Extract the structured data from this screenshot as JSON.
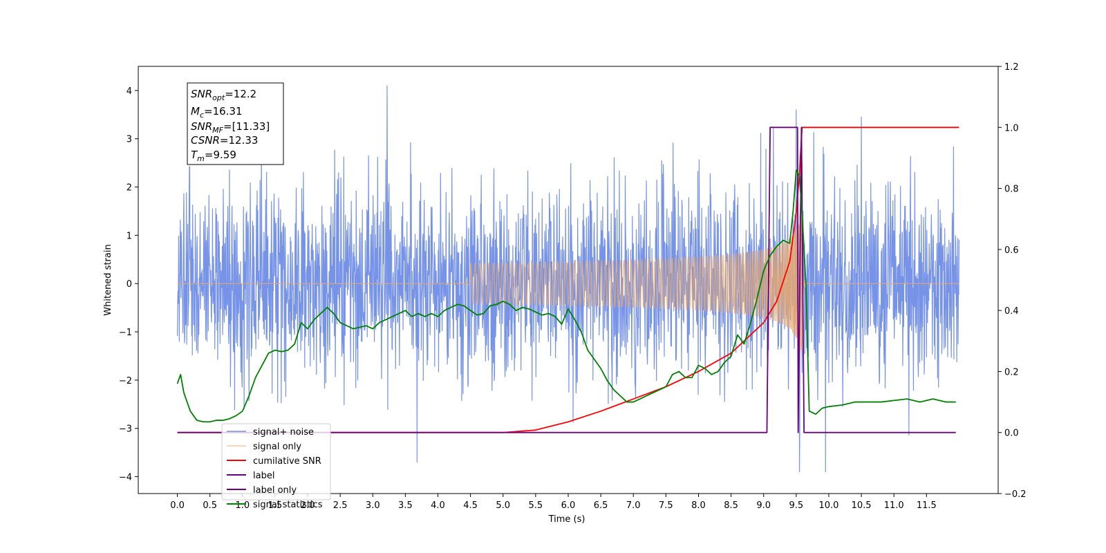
{
  "chart_data": {
    "type": "line",
    "xlabel": "Time (s)",
    "ylabel": "Whitened strain",
    "xlim": [
      -0.6,
      12.6
    ],
    "ylim": [
      -4.35,
      4.5
    ],
    "y2lim": [
      -0.2,
      1.2
    ],
    "x_ticks": [
      "0.0",
      "0.5",
      "1.0",
      "1.5",
      "2.0",
      "2.5",
      "3.0",
      "3.5",
      "4.0",
      "4.5",
      "5.0",
      "5.5",
      "6.0",
      "6.5",
      "7.0",
      "7.5",
      "8.0",
      "8.5",
      "9.0",
      "9.5",
      "10.0",
      "10.5",
      "11.0",
      "11.5"
    ],
    "y_ticks": [
      "4",
      "3",
      "2",
      "1",
      "0",
      "−1",
      "−2",
      "−3",
      "−4"
    ],
    "y2_ticks": [
      "1.2",
      "1.0",
      "0.8",
      "0.6",
      "0.4",
      "0.2",
      "0.0",
      "−0.2"
    ],
    "grid": false,
    "legend_position": "lower-left",
    "annotation": {
      "snr_opt": {
        "base": "SNR",
        "sub": "opt",
        "value": "=12.2"
      },
      "mc": {
        "base": "M",
        "sub": "c",
        "value": "=16.31"
      },
      "snr_mf": {
        "base": "SNR",
        "sub": "MF",
        "value": "=[11.33]"
      },
      "csnr": {
        "base": "CSNR",
        "value": "=12.33"
      },
      "tm": {
        "base": "T",
        "sub": "m",
        "value": "=9.59"
      }
    },
    "series": [
      {
        "name": "signal+ noise",
        "color": "#7693e8",
        "axis": "left",
        "kind": "noise",
        "x_range": [
          0.0,
          12.0
        ],
        "envelope_std": 1.0,
        "peak_values": [
          [
            3.22,
            4.1
          ],
          [
            3.68,
            -3.7
          ],
          [
            9.5,
            3.6
          ],
          [
            9.55,
            -3.9
          ],
          [
            9.95,
            -3.9
          ],
          [
            10.5,
            3.45
          ]
        ]
      },
      {
        "name": "signal only",
        "color": "#e8a86e",
        "axis": "left",
        "kind": "chirp",
        "x_range": [
          0.0,
          12.0
        ],
        "merger_time": 9.59,
        "peak_amplitude": 2.5
      },
      {
        "name": "cumilative SNR",
        "color": "#ff0000",
        "axis": "right",
        "x": [
          0.0,
          5.0,
          5.5,
          6.0,
          6.5,
          7.0,
          7.5,
          8.0,
          8.5,
          9.0,
          9.2,
          9.4,
          9.5,
          9.55,
          9.59,
          12.0
        ],
        "values": [
          0.0,
          0.0,
          0.008,
          0.035,
          0.07,
          0.11,
          0.15,
          0.2,
          0.26,
          0.36,
          0.43,
          0.56,
          0.72,
          0.85,
          1.0,
          1.0
        ]
      },
      {
        "name": "label",
        "color": "#6a0080",
        "axis": "right",
        "x": [
          0.0,
          9.05,
          9.1,
          9.52,
          9.53,
          9.58,
          9.62,
          11.95
        ],
        "values": [
          0.0,
          0.0,
          1.0,
          1.0,
          0.0,
          1.0,
          0.0,
          0.0
        ]
      },
      {
        "name": "label only",
        "color": "#6a0080",
        "axis": "right",
        "x": [],
        "values": []
      },
      {
        "name": "signal statistics",
        "color": "#008000",
        "axis": "right",
        "x": [
          0.0,
          0.05,
          0.1,
          0.2,
          0.3,
          0.4,
          0.5,
          0.6,
          0.7,
          0.8,
          0.9,
          1.0,
          1.1,
          1.2,
          1.3,
          1.4,
          1.5,
          1.6,
          1.7,
          1.8,
          1.9,
          2.0,
          2.1,
          2.2,
          2.3,
          2.4,
          2.5,
          2.6,
          2.7,
          2.8,
          2.9,
          3.0,
          3.1,
          3.2,
          3.3,
          3.4,
          3.5,
          3.6,
          3.7,
          3.8,
          3.9,
          4.0,
          4.1,
          4.2,
          4.3,
          4.4,
          4.5,
          4.6,
          4.7,
          4.8,
          4.9,
          5.0,
          5.1,
          5.2,
          5.3,
          5.4,
          5.5,
          5.6,
          5.7,
          5.8,
          5.9,
          6.0,
          6.1,
          6.2,
          6.3,
          6.4,
          6.5,
          6.6,
          6.7,
          6.8,
          6.9,
          7.0,
          7.1,
          7.2,
          7.3,
          7.4,
          7.5,
          7.6,
          7.7,
          7.8,
          7.9,
          8.0,
          8.1,
          8.2,
          8.3,
          8.4,
          8.5,
          8.6,
          8.7,
          8.8,
          8.9,
          9.0,
          9.1,
          9.2,
          9.3,
          9.4,
          9.45,
          9.5,
          9.55,
          9.6,
          9.65,
          9.7,
          9.8,
          9.9,
          10.0,
          10.2,
          10.4,
          10.6,
          10.8,
          11.0,
          11.2,
          11.4,
          11.6,
          11.8,
          11.95
        ],
        "values": [
          0.16,
          0.19,
          0.13,
          0.07,
          0.04,
          0.035,
          0.035,
          0.04,
          0.04,
          0.045,
          0.055,
          0.07,
          0.12,
          0.18,
          0.22,
          0.26,
          0.27,
          0.265,
          0.27,
          0.29,
          0.36,
          0.34,
          0.37,
          0.39,
          0.41,
          0.39,
          0.36,
          0.35,
          0.34,
          0.345,
          0.35,
          0.34,
          0.36,
          0.37,
          0.38,
          0.39,
          0.4,
          0.38,
          0.39,
          0.38,
          0.39,
          0.38,
          0.4,
          0.41,
          0.42,
          0.415,
          0.4,
          0.385,
          0.39,
          0.415,
          0.42,
          0.43,
          0.42,
          0.4,
          0.41,
          0.405,
          0.395,
          0.385,
          0.39,
          0.38,
          0.355,
          0.405,
          0.37,
          0.33,
          0.27,
          0.24,
          0.21,
          0.17,
          0.14,
          0.12,
          0.1,
          0.1,
          0.11,
          0.12,
          0.13,
          0.14,
          0.15,
          0.19,
          0.2,
          0.18,
          0.18,
          0.22,
          0.21,
          0.19,
          0.2,
          0.23,
          0.25,
          0.32,
          0.29,
          0.36,
          0.44,
          0.53,
          0.58,
          0.61,
          0.63,
          0.62,
          0.72,
          0.86,
          0.84,
          0.68,
          0.48,
          0.07,
          0.06,
          0.08,
          0.085,
          0.09,
          0.1,
          0.1,
          0.1,
          0.105,
          0.11,
          0.1,
          0.11,
          0.1,
          0.1
        ]
      }
    ]
  }
}
